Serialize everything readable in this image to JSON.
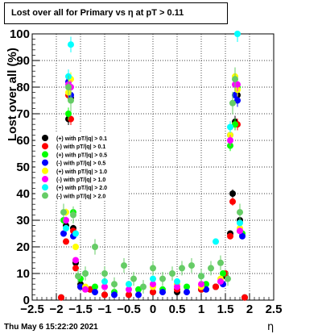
{
  "chart_data": {
    "type": "scatter",
    "title": "Lost over all for Primary vs  η at pT > 0.11",
    "xlabel": "η",
    "ylabel": "Lost over all (%)",
    "xlim": [
      -2.5,
      2.5
    ],
    "ylim": [
      0,
      100
    ],
    "x_ticks": [
      "−2.5",
      "−2",
      "−1.5",
      "−1",
      "−0.5",
      "0",
      "0.5",
      "1",
      "1.5",
      "2",
      "2.5"
    ],
    "x_tick_values": [
      -2.5,
      -2,
      -1.5,
      -1,
      -0.5,
      0,
      0.5,
      1,
      1.5,
      2,
      2.5
    ],
    "y_ticks": [
      "0",
      "10",
      "20",
      "30",
      "40",
      "50",
      "60",
      "70",
      "80",
      "90",
      "100"
    ],
    "y_tick_values": [
      0,
      10,
      20,
      30,
      40,
      50,
      60,
      70,
      80,
      90,
      100
    ],
    "grid": true,
    "legend_position": "middle-left",
    "series": [
      {
        "name": "(+) with pT/|q| > 0.1",
        "color": "#000000",
        "points": [
          [
            -1.9,
            1
          ],
          [
            -1.8,
            28
          ],
          [
            -1.75,
            68
          ],
          [
            -1.7,
            76
          ],
          [
            -1.65,
            27
          ],
          [
            -1.6,
            14
          ],
          [
            -1.5,
            6
          ],
          [
            -1.3,
            4
          ],
          [
            -1.0,
            2
          ],
          [
            -0.5,
            2
          ],
          [
            0,
            3
          ],
          [
            0.5,
            3
          ],
          [
            1.0,
            4
          ],
          [
            1.3,
            5
          ],
          [
            1.5,
            9
          ],
          [
            1.6,
            25
          ],
          [
            1.65,
            40
          ],
          [
            1.7,
            67
          ],
          [
            1.75,
            77
          ],
          [
            1.8,
            30
          ],
          [
            1.9,
            1
          ]
        ]
      },
      {
        "name": "(-) with pT/|q| > 0.1",
        "color": "#ff0000",
        "points": [
          [
            -1.9,
            1
          ],
          [
            -1.8,
            22
          ],
          [
            -1.75,
            77
          ],
          [
            -1.7,
            68
          ],
          [
            -1.65,
            26
          ],
          [
            -1.6,
            12
          ],
          [
            -1.5,
            5
          ],
          [
            -1.3,
            4
          ],
          [
            -1.0,
            2
          ],
          [
            -0.5,
            2
          ],
          [
            0,
            3
          ],
          [
            0.5,
            4
          ],
          [
            1.0,
            4
          ],
          [
            1.3,
            5
          ],
          [
            1.5,
            10
          ],
          [
            1.6,
            24
          ],
          [
            1.65,
            37
          ],
          [
            1.7,
            66
          ],
          [
            1.75,
            66
          ],
          [
            1.8,
            26
          ],
          [
            1.9,
            1
          ]
        ]
      },
      {
        "name": "(+) with pT/|q| > 0.5",
        "color": "#00ff00",
        "points": [
          [
            -1.85,
            30
          ],
          [
            -1.75,
            70
          ],
          [
            -1.7,
            60
          ],
          [
            -1.65,
            33
          ],
          [
            -1.5,
            8
          ],
          [
            -1.2,
            5
          ],
          [
            -0.8,
            3
          ],
          [
            -0.3,
            4
          ],
          [
            0.2,
            4
          ],
          [
            0.7,
            5
          ],
          [
            1.1,
            6
          ],
          [
            1.45,
            10
          ],
          [
            1.6,
            58
          ],
          [
            1.7,
            66
          ],
          [
            1.75,
            80
          ],
          [
            1.85,
            25
          ]
        ]
      },
      {
        "name": "(-) with pT/|q| > 0.5",
        "color": "#0000ff",
        "points": [
          [
            -1.85,
            25
          ],
          [
            -1.75,
            82
          ],
          [
            -1.7,
            77
          ],
          [
            -1.65,
            24
          ],
          [
            -1.5,
            5
          ],
          [
            -1.2,
            3
          ],
          [
            -0.8,
            2
          ],
          [
            -0.3,
            2
          ],
          [
            0.2,
            3
          ],
          [
            0.7,
            3
          ],
          [
            1.1,
            4
          ],
          [
            1.45,
            6
          ],
          [
            1.6,
            62
          ],
          [
            1.7,
            77
          ],
          [
            1.75,
            75
          ],
          [
            1.85,
            24
          ]
        ]
      },
      {
        "name": "(+) with pT/|q| > 1.0",
        "color": "#ffff00",
        "points": [
          [
            -1.8,
            33
          ],
          [
            -1.75,
            78
          ],
          [
            -1.7,
            83
          ],
          [
            -1.6,
            20
          ],
          [
            -1.4,
            5
          ],
          [
            -1.0,
            5
          ],
          [
            -0.5,
            6
          ],
          [
            0,
            5
          ],
          [
            0.5,
            6
          ],
          [
            1.0,
            5
          ],
          [
            1.4,
            8
          ],
          [
            1.6,
            62
          ],
          [
            1.7,
            84
          ],
          [
            1.75,
            79
          ],
          [
            1.8,
            27
          ]
        ]
      },
      {
        "name": "(-) with pT/|q| > 1.0",
        "color": "#ff00ff",
        "points": [
          [
            -1.8,
            30
          ],
          [
            -1.75,
            81
          ],
          [
            -1.7,
            80
          ],
          [
            -1.6,
            15
          ],
          [
            -1.4,
            4
          ],
          [
            -1.0,
            5
          ],
          [
            -0.5,
            4
          ],
          [
            0,
            6
          ],
          [
            0.5,
            5
          ],
          [
            1.0,
            6
          ],
          [
            1.4,
            7
          ],
          [
            1.6,
            60
          ],
          [
            1.7,
            81
          ],
          [
            1.75,
            81
          ],
          [
            1.8,
            26
          ]
        ]
      },
      {
        "name": "(+) with pT/|q| > 2.0",
        "color": "#00ffff",
        "points": [
          [
            -1.8,
            27
          ],
          [
            -1.75,
            84
          ],
          [
            -1.7,
            96
          ],
          [
            -1.6,
            25
          ],
          [
            -1.4,
            10
          ],
          [
            -1.0,
            7
          ],
          [
            -0.5,
            6
          ],
          [
            0,
            8
          ],
          [
            0.5,
            7
          ],
          [
            1.0,
            9
          ],
          [
            1.3,
            22
          ],
          [
            1.6,
            65
          ],
          [
            1.75,
            100
          ],
          [
            1.8,
            29
          ]
        ]
      },
      {
        "name": "(-) with pT/|q| > 2.0",
        "color": "#66cc66",
        "points": [
          [
            -1.85,
            33
          ],
          [
            -1.75,
            80
          ],
          [
            -1.7,
            75
          ],
          [
            -1.65,
            32
          ],
          [
            -1.55,
            9
          ],
          [
            -1.4,
            10
          ],
          [
            -1.2,
            20
          ],
          [
            -1.0,
            10
          ],
          [
            -0.8,
            6
          ],
          [
            -0.6,
            13
          ],
          [
            -0.4,
            8
          ],
          [
            -0.2,
            5
          ],
          [
            0,
            12
          ],
          [
            0.2,
            8
          ],
          [
            0.4,
            10
          ],
          [
            0.6,
            12
          ],
          [
            0.8,
            13
          ],
          [
            1.0,
            9
          ],
          [
            1.2,
            12
          ],
          [
            1.4,
            14
          ],
          [
            1.55,
            8
          ],
          [
            1.65,
            74
          ],
          [
            1.7,
            83
          ],
          [
            1.8,
            33
          ]
        ]
      }
    ]
  },
  "footer": {
    "date": "Thu May  6 15:22:20 2021"
  }
}
